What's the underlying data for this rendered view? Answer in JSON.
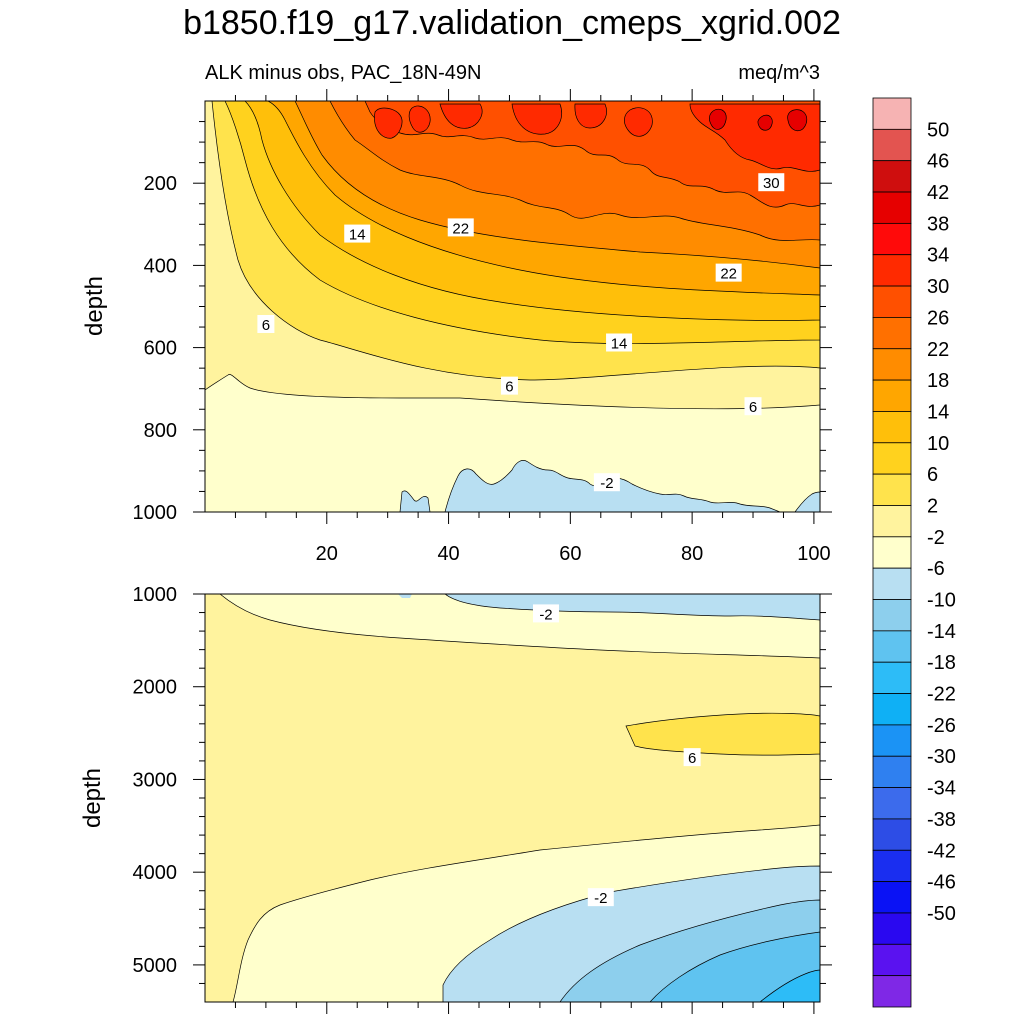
{
  "title": "b1850.f19_g17.validation_cmeps_xgrid.002",
  "subtitle_left": "ALK minus obs, PAC_18N-49N",
  "subtitle_right": "meq/m^3",
  "colorbar": {
    "colors": [
      "#f6b3b3",
      "#e35450",
      "#cf0e0e",
      "#e60000",
      "#ff0a0a",
      "#ff2a00",
      "#ff5000",
      "#ff7000",
      "#ff8c00",
      "#ffa600",
      "#ffbf0a",
      "#ffd21e",
      "#ffe34c",
      "#fff39e",
      "#ffffcc",
      "#b8dff2",
      "#8dcfed",
      "#5fc3f0",
      "#2dbcf7",
      "#0fb0f5",
      "#1b93f5",
      "#2f80f0",
      "#3c6bec",
      "#2d4de6",
      "#1a2ef0",
      "#0a12f5",
      "#2a08f0",
      "#5a12f0",
      "#7f28e6"
    ],
    "labels": [
      "50",
      "46",
      "42",
      "38",
      "34",
      "30",
      "26",
      "22",
      "18",
      "14",
      "10",
      "6",
      "2",
      "-2",
      "-6",
      "-10",
      "-14",
      "-18",
      "-22",
      "-26",
      "-30",
      "-34",
      "-38",
      "-42",
      "-46",
      "-50"
    ]
  },
  "chart_data": [
    {
      "type": "contour",
      "panel": "upper",
      "title": "b1850.f19_g17.validation_cmeps_xgrid.002",
      "subtitle": "ALK minus obs, PAC_18N-49N",
      "units": "meq/m^3",
      "xlabel": "",
      "ylabel": "depth",
      "xlim": [
        0,
        101
      ],
      "ylim": [
        0,
        1000
      ],
      "y_inverted": true,
      "xticks": [
        "20",
        "40",
        "60",
        "80",
        "100"
      ],
      "yticks": [
        "200",
        "400",
        "600",
        "800",
        "1000"
      ],
      "xtick_values": [
        20,
        40,
        60,
        80,
        100
      ],
      "ytick_values": [
        200,
        400,
        600,
        800,
        1000
      ],
      "contour_labels": [
        {
          "text": "30",
          "x": 93,
          "y": 200
        },
        {
          "text": "22",
          "x": 42,
          "y": 310
        },
        {
          "text": "14",
          "x": 25,
          "y": 325
        },
        {
          "text": "22",
          "x": 86,
          "y": 420
        },
        {
          "text": "6",
          "x": 10,
          "y": 545
        },
        {
          "text": "14",
          "x": 68,
          "y": 590
        },
        {
          "text": "6",
          "x": 50,
          "y": 695
        },
        {
          "text": "6",
          "x": 90,
          "y": 745
        },
        {
          "text": "-2",
          "x": 66,
          "y": 930
        }
      ]
    },
    {
      "type": "contour",
      "panel": "lower",
      "xlabel": "",
      "ylabel": "depth",
      "xlim": [
        0,
        101
      ],
      "ylim": [
        1000,
        5400
      ],
      "y_inverted": true,
      "yticks": [
        "1000",
        "2000",
        "3000",
        "4000",
        "5000"
      ],
      "ytick_values": [
        1000,
        2000,
        3000,
        4000,
        5000
      ],
      "contour_labels": [
        {
          "text": "-2",
          "x": 56,
          "y": 1220
        },
        {
          "text": "6",
          "x": 80,
          "y": 2770
        },
        {
          "text": "-2",
          "x": 65,
          "y": 4280
        }
      ]
    }
  ]
}
